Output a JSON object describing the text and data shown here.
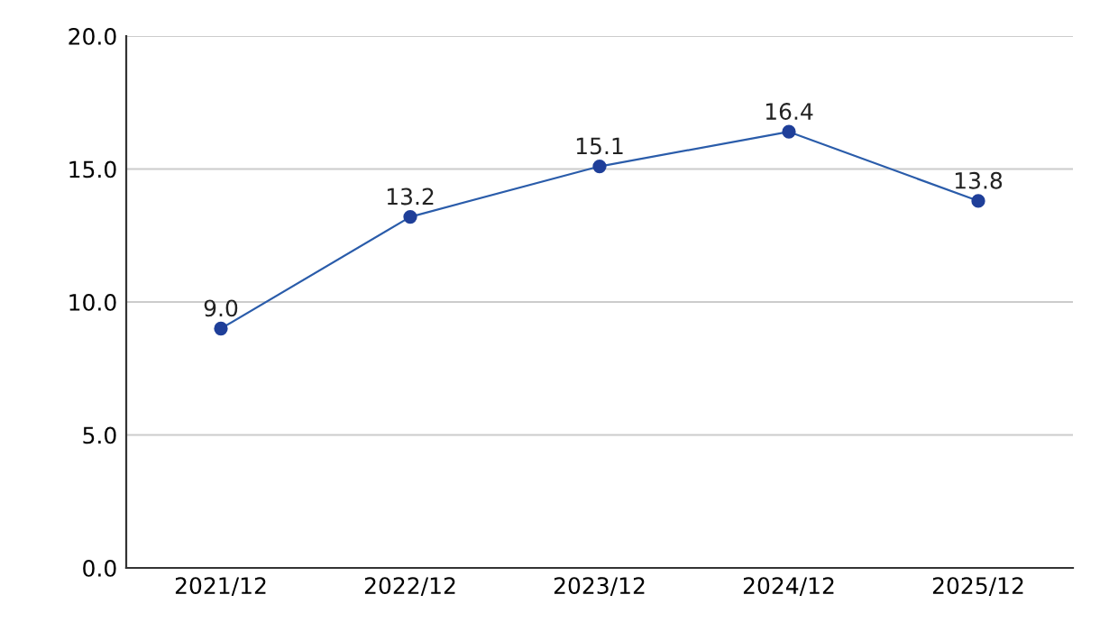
{
  "chart_data": {
    "type": "line",
    "categories": [
      "2021/12",
      "2022/12",
      "2023/12",
      "2024/12",
      "2025/12"
    ],
    "series": [
      {
        "color": "#2a5caa",
        "values": [
          9.0,
          13.2,
          15.1,
          16.4,
          13.8
        ],
        "value_labels": [
          "9.0",
          "13.2",
          "15.1",
          "16.4",
          "13.8"
        ]
      }
    ],
    "ylim": [
      0,
      20
    ],
    "yticks": [
      {
        "value": 0,
        "label": "0.0"
      },
      {
        "value": 5,
        "label": "5.0"
      },
      {
        "value": 10,
        "label": "10.0"
      },
      {
        "value": 15,
        "label": "15.0"
      },
      {
        "value": 20,
        "label": "20.0"
      }
    ],
    "grid": "y",
    "marker": "circle",
    "line_style": "solid",
    "legend": false
  }
}
